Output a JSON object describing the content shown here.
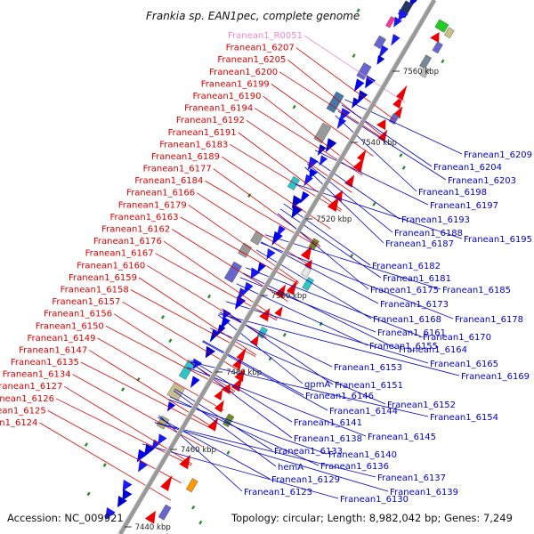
{
  "title": "Frankia sp. EAN1pec, complete genome",
  "footer": {
    "accession": "Accession: NC_009921",
    "topology": "Topology: circular; Length: 8,982,042 bp; Genes: 7,249"
  },
  "kbp_ticks": [
    "7440 kbp",
    "7460 kbp",
    "7480 kbp",
    "7500 kbp",
    "7520 kbp",
    "7540 kbp",
    "7560 kbp"
  ],
  "colors": {
    "forward_strand_label": "#dd0000",
    "reverse_strand_label": "#0000cc",
    "rna_label": "#ee88cc",
    "backbone": "#999999"
  },
  "labels_left": [
    {
      "text": "Franean1_R0051",
      "type": "rna"
    },
    "Franean1_6207",
    "Franean1_6205",
    "Franean1_6200",
    "Franean1_6199",
    "Franean1_6190",
    "Franean1_6194",
    "Franean1_6192",
    "Franean1_6191",
    "Franean1_6183",
    "Franean1_6189",
    "Franean1_6177",
    "Franean1_6184",
    "Franean1_6166",
    "Franean1_6179",
    "Franean1_6163",
    "Franean1_6162",
    "Franean1_6176",
    "Franean1_6167",
    "Franean1_6160",
    "Franean1_6159",
    "Franean1_6158",
    "Franean1_6157",
    "Franean1_6156",
    "Franean1_6150",
    "Franean1_6149",
    "Franean1_6147",
    "Franean1_6135",
    "Franean1_6134",
    "Franean1_6127",
    "Franean1_6126",
    "Franean1_6125",
    "Franean1_6124"
  ],
  "labels_right": [
    "Franean1_6209",
    "Franean1_6204",
    "Franean1_6203",
    "Franean1_6198",
    "Franean1_6197",
    "Franean1_6193",
    "Franean1_6188",
    "Franean1_6187",
    "Franean1_6195",
    "Franean1_6182",
    "Franean1_6181",
    "Franean1_6175",
    "Franean1_6185",
    "Franean1_6173",
    "Franean1_6168",
    "Franean1_6178",
    "Franean1_6161",
    "Franean1_6155",
    "Franean1_6170",
    "Franean1_6164",
    "Franean1_6153",
    "Franean1_6165",
    "gpmA",
    "Franean1_6151",
    "Franean1_6146",
    "Franean1_6169",
    "Franean1_6144",
    "Franean1_6152",
    "Franean1_6154",
    "Franean1_6141",
    "Franean1_6145",
    "Franean1_6138",
    "Franean1_6140",
    "Franean1_6133",
    "Franean1_6136",
    "hemA",
    "Franean1_6137",
    "Franean1_6129",
    "Franean1_6139",
    "Franean1_6123",
    "Franean1_6130"
  ]
}
